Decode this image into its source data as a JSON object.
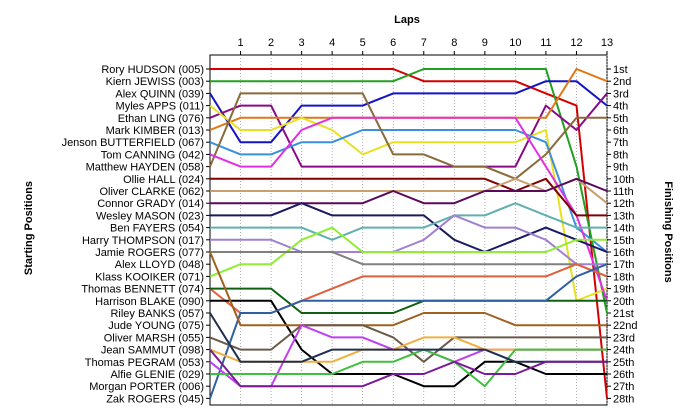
{
  "chart_data": {
    "type": "line",
    "title": "",
    "xlabel": "Laps",
    "ylabel_left": "Starting Positions",
    "ylabel_right": "Finishing Positions",
    "x": [
      0,
      1,
      2,
      3,
      4,
      5,
      6,
      7,
      8,
      9,
      10,
      11,
      12,
      13
    ],
    "x_tick_labels": [
      "1",
      "2",
      "3",
      "4",
      "5",
      "6",
      "7",
      "8",
      "9",
      "10",
      "11",
      "12",
      "13"
    ],
    "ylim": [
      1,
      28
    ],
    "y_inverted": true,
    "grid": "vertical dotted lines at each lap",
    "start_labels": [
      "Rory HUDSON (005)",
      "Kiern JEWISS (003)",
      "Alex QUINN (039)",
      "Myles APPS (011)",
      "Ethan LING (076)",
      "Mark KIMBER (013)",
      "Jenson BUTTERFIELD (067)",
      "Tom CANNING (042)",
      "Matthew HAYDEN (058)",
      "Ollie HALL (024)",
      "Oliver CLARKE (062)",
      "Connor GRADY (014)",
      "Wesley MASON (023)",
      "Ben FAYERS (054)",
      "Harry THOMPSON (017)",
      "Jamie ROGERS (077)",
      "Alex LLOYD (048)",
      "Klass KOOIKER (071)",
      "Thomas BENNETT (074)",
      "Harrison BLAKE (090)",
      "Riley BANKS (057)",
      "Jude YOUNG (075)",
      "Oliver MARSH (055)",
      "Jean SAMMUT (098)",
      "Thomas PEGRAM (053)",
      "Alfie GLENIE (029)",
      "Morgan PORTER (006)",
      "Zak ROGERS (045)"
    ],
    "finish_labels": [
      "1st",
      "2nd",
      "3rd",
      "4th",
      "5th",
      "6th",
      "7th",
      "8th",
      "9th",
      "10th",
      "11th",
      "12th",
      "13th",
      "14th",
      "15th",
      "16th",
      "17th",
      "18th",
      "19th",
      "20th",
      "21st",
      "22nd",
      "23rd",
      "24th",
      "25th",
      "26th",
      "27th",
      "28th"
    ],
    "series": [
      {
        "start": 1,
        "color": "#d40000",
        "values": [
          1,
          1,
          1,
          1,
          1,
          1,
          1,
          2,
          2,
          2,
          2,
          3,
          4,
          28
        ]
      },
      {
        "start": 2,
        "color": "#22a022",
        "values": [
          2,
          2,
          2,
          2,
          2,
          2,
          2,
          1,
          1,
          1,
          1,
          1,
          9,
          21
        ]
      },
      {
        "start": 3,
        "color": "#1414c8",
        "values": [
          3,
          7,
          7,
          4,
          4,
          4,
          3,
          3,
          3,
          3,
          3,
          2,
          2,
          4
        ]
      },
      {
        "start": 4,
        "color": "#8a0a8a",
        "values": [
          5,
          4,
          4,
          9,
          9,
          9,
          9,
          9,
          9,
          9,
          9,
          4,
          6,
          3
        ]
      },
      {
        "start": 5,
        "color": "#e07818",
        "values": [
          6,
          5,
          5,
          5,
          5,
          5,
          5,
          5,
          5,
          5,
          5,
          5,
          1,
          2
        ]
      },
      {
        "start": 6,
        "color": "#e8e020",
        "values": [
          4,
          6,
          6,
          5,
          6,
          8,
          7,
          7,
          7,
          7,
          7,
          6,
          20,
          19
        ]
      },
      {
        "start": 7,
        "color": "#3a90e0",
        "values": [
          7,
          8,
          8,
          7,
          7,
          6,
          6,
          6,
          6,
          6,
          6,
          7,
          14,
          16
        ]
      },
      {
        "start": 8,
        "color": "#8a6a3a",
        "values": [
          9,
          3,
          3,
          3,
          3,
          3,
          8,
          8,
          9,
          9,
          10,
          8,
          5,
          5
        ]
      },
      {
        "start": 9,
        "color": "#e030e0",
        "values": [
          8,
          9,
          9,
          6,
          5,
          5,
          5,
          5,
          5,
          5,
          5,
          9,
          13,
          20
        ]
      },
      {
        "start": 10,
        "color": "#800000",
        "values": [
          10,
          10,
          10,
          10,
          10,
          10,
          10,
          10,
          10,
          10,
          11,
          10,
          13,
          13
        ]
      },
      {
        "start": 11,
        "color": "#c8a070",
        "values": [
          11,
          11,
          11,
          11,
          11,
          11,
          11,
          11,
          11,
          11,
          10,
          11,
          10,
          12
        ]
      },
      {
        "start": 12,
        "color": "#5a0a5a",
        "values": [
          12,
          12,
          12,
          12,
          12,
          12,
          11,
          12,
          12,
          11,
          11,
          11,
          10,
          11
        ]
      },
      {
        "start": 13,
        "color": "#1a1a60",
        "values": [
          13,
          13,
          13,
          12,
          13,
          13,
          13,
          13,
          15,
          16,
          15,
          14,
          15,
          16
        ]
      },
      {
        "start": 14,
        "color": "#60b0b0",
        "values": [
          14,
          14,
          14,
          14,
          15,
          14,
          14,
          14,
          13,
          13,
          12,
          13,
          14,
          14
        ]
      },
      {
        "start": 15,
        "color": "#a080d0",
        "values": [
          15,
          15,
          15,
          16,
          16,
          16,
          16,
          15,
          13,
          14,
          14,
          15,
          17,
          17
        ]
      },
      {
        "start": 16,
        "color": "#90ee30",
        "values": [
          18,
          17,
          17,
          15,
          14,
          16,
          16,
          16,
          16,
          16,
          16,
          16,
          15,
          15
        ]
      },
      {
        "start": 17,
        "color": "#808080",
        "values": [
          16,
          16,
          16,
          16,
          16,
          17,
          17,
          17,
          17,
          17,
          17,
          17,
          17,
          18
        ]
      },
      {
        "start": 18,
        "color": "#e06040",
        "values": [
          19,
          21,
          21,
          20,
          19,
          18,
          18,
          18,
          18,
          18,
          18,
          18,
          17,
          18
        ]
      },
      {
        "start": 19,
        "color": "#106010",
        "values": [
          19,
          19,
          19,
          21,
          21,
          21,
          21,
          20,
          20,
          20,
          20,
          20,
          20,
          20
        ]
      },
      {
        "start": 20,
        "color": "#000000",
        "values": [
          20,
          20,
          20,
          24,
          26,
          26,
          26,
          27,
          27,
          25,
          25,
          26,
          26,
          26
        ]
      },
      {
        "start": 21,
        "color": "#3060a0",
        "values": [
          28,
          21,
          21,
          20,
          20,
          20,
          20,
          20,
          20,
          20,
          20,
          20,
          18,
          17
        ]
      },
      {
        "start": 22,
        "color": "#a06020",
        "values": [
          16,
          22,
          22,
          22,
          22,
          22,
          22,
          21,
          21,
          21,
          22,
          22,
          22,
          22
        ]
      },
      {
        "start": 23,
        "color": "#6a5a4a",
        "values": [
          23,
          24,
          24,
          22,
          22,
          22,
          23,
          25,
          23,
          23,
          23,
          23,
          23,
          23
        ]
      },
      {
        "start": 24,
        "color": "#c040f0",
        "values": [
          25,
          27,
          27,
          22,
          23,
          23,
          24,
          24,
          25,
          24,
          24,
          24,
          24,
          24
        ]
      },
      {
        "start": 25,
        "color": "#f0b040",
        "values": [
          24,
          25,
          25,
          25,
          25,
          24,
          24,
          23,
          23,
          24,
          24,
          24,
          24,
          24
        ]
      },
      {
        "start": 26,
        "color": "#40c040",
        "values": [
          26,
          26,
          26,
          26,
          26,
          25,
          25,
          24,
          25,
          27,
          24,
          24,
          24,
          24
        ]
      },
      {
        "start": 27,
        "color": "#203050",
        "values": [
          21,
          25,
          25,
          25,
          24,
          24,
          24,
          24,
          24,
          24,
          25,
          25,
          25,
          25
        ]
      },
      {
        "start": 28,
        "color": "#7a1a9a",
        "values": [
          24,
          27,
          27,
          27,
          27,
          27,
          26,
          26,
          25,
          26,
          26,
          25,
          25,
          25
        ]
      }
    ]
  }
}
